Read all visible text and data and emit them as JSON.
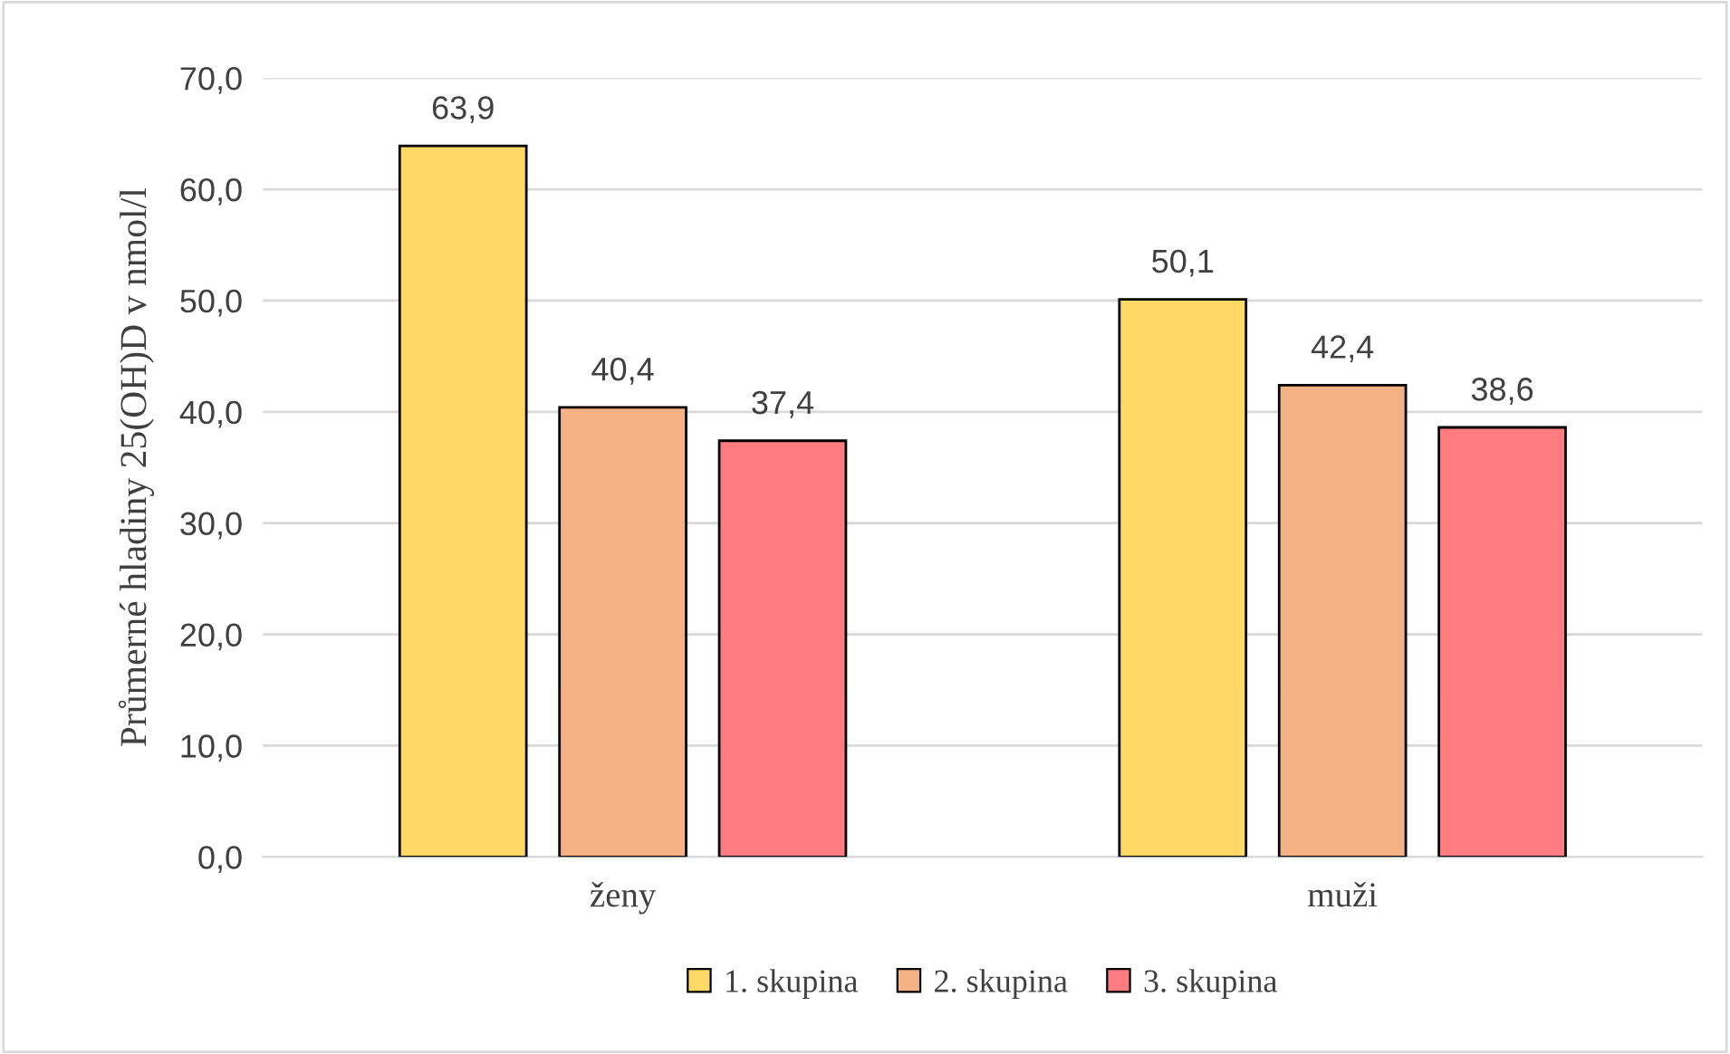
{
  "chart_data": {
    "type": "bar",
    "ylabel": "Průmerné hladiny 25(OH)D v nmol/l",
    "categories": [
      "ženy",
      "muži"
    ],
    "series": [
      {
        "name": "1. skupina",
        "color": "#ffd966",
        "values": [
          63.9,
          50.1
        ],
        "value_labels": [
          "63,9",
          "50,1"
        ]
      },
      {
        "name": "2. skupina",
        "color": "#f4b183",
        "values": [
          40.4,
          42.4
        ],
        "value_labels": [
          "40,4",
          "42,4"
        ]
      },
      {
        "name": "3. skupina",
        "color": "#ff7c80",
        "values": [
          37.4,
          38.6
        ],
        "value_labels": [
          "37,4",
          "38,6"
        ]
      }
    ],
    "ylim": [
      0,
      70
    ],
    "yticks": [
      {
        "value": 0,
        "label": "0,0"
      },
      {
        "value": 10,
        "label": "10,0"
      },
      {
        "value": 20,
        "label": "20,0"
      },
      {
        "value": 30,
        "label": "30,0"
      },
      {
        "value": 40,
        "label": "40,0"
      },
      {
        "value": 50,
        "label": "50,0"
      },
      {
        "value": 60,
        "label": "60,0"
      },
      {
        "value": 70,
        "label": "70,0"
      }
    ],
    "grid": "y",
    "legend": "bottom"
  }
}
